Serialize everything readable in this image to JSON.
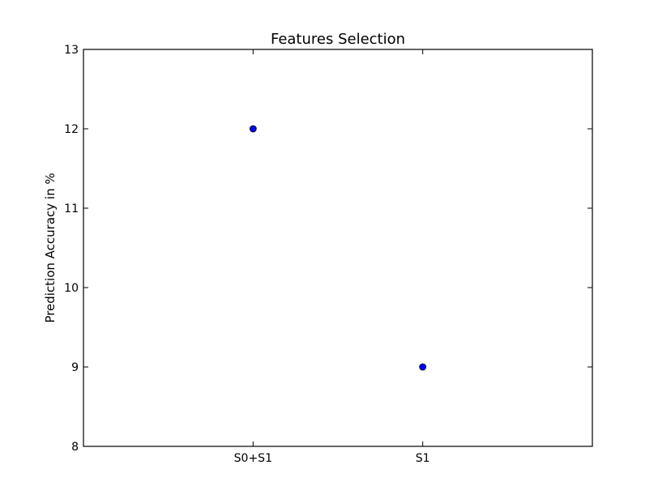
{
  "chart_data": {
    "type": "scatter",
    "title": "Features Selection",
    "xlabel": "",
    "ylabel": "Prediction Accuracy in %",
    "categories": [
      "S0+S1",
      "S1"
    ],
    "series": [
      {
        "values": [
          12,
          9
        ],
        "color": "#0000ff"
      }
    ],
    "ylim": [
      8,
      13
    ],
    "yticks": [
      8,
      9,
      10,
      11,
      12,
      13
    ],
    "grid": false,
    "legend": "none"
  }
}
